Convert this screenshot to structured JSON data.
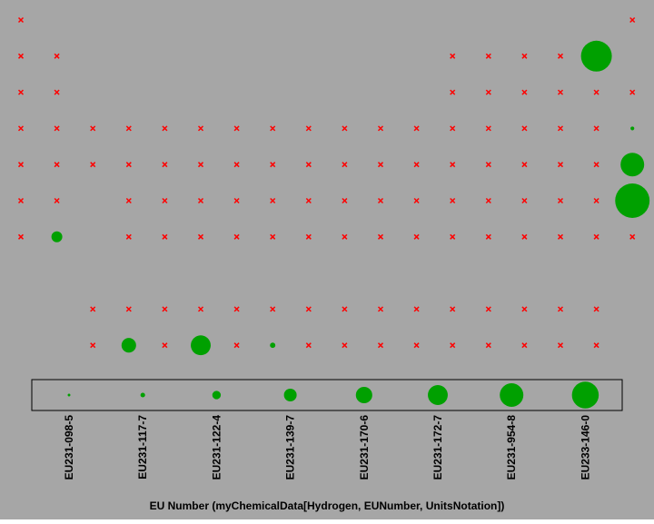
{
  "chart_data": {
    "type": "bubble",
    "background": "#a6a6a6",
    "bubble_color": "#00a000",
    "cross_color": "#ff0000",
    "matrix": [
      [
        0,
        null,
        null,
        null,
        null,
        null,
        null,
        null,
        null,
        null,
        null,
        null,
        null,
        null,
        null,
        null,
        null,
        0
      ],
      [
        0,
        0,
        null,
        null,
        null,
        null,
        null,
        null,
        null,
        null,
        null,
        null,
        0,
        0,
        0,
        0,
        26.5,
        null
      ],
      [
        0,
        0,
        null,
        null,
        null,
        null,
        null,
        null,
        null,
        null,
        null,
        null,
        0,
        0,
        0,
        0,
        0,
        0
      ],
      [
        0,
        0,
        0,
        0,
        0,
        0,
        0,
        0,
        0,
        0,
        0,
        0,
        0,
        0,
        0,
        0,
        0,
        0.4
      ],
      [
        0,
        0,
        0,
        0,
        0,
        0,
        0,
        0,
        0,
        0,
        0,
        0,
        0,
        0,
        0,
        0,
        0,
        15.5
      ],
      [
        0,
        0,
        null,
        0,
        0,
        0,
        0,
        0,
        0,
        0,
        0,
        0,
        0,
        0,
        0,
        0,
        0,
        33
      ],
      [
        0,
        3.3,
        null,
        0,
        0,
        0,
        0,
        0,
        0,
        0,
        0,
        0,
        0,
        0,
        0,
        0,
        0,
        0
      ],
      [
        null,
        null,
        null,
        null,
        null,
        null,
        null,
        null,
        null,
        null,
        null,
        null,
        null,
        null,
        null,
        null,
        null,
        null
      ],
      [
        null,
        null,
        0,
        0,
        0,
        0,
        0,
        0,
        0,
        0,
        0,
        0,
        0,
        0,
        0,
        0,
        0,
        null
      ],
      [
        null,
        null,
        0,
        5.9,
        0,
        11,
        0,
        0.8,
        0,
        0,
        0,
        0,
        0,
        0,
        0,
        0,
        0,
        null
      ]
    ],
    "categories": [
      "EU231-098-5",
      "EU231-117-7",
      "EU231-122-4",
      "EU231-139-7",
      "EU231-170-6",
      "EU231-172-7",
      "EU231-954-8",
      "EU233-146-0"
    ],
    "sizes": [
      0.2,
      0.6,
      2,
      4.5,
      7.5,
      11,
      15.5,
      20
    ],
    "xlabel": "EU Number (myChemicalData[Hydrogen, EUNumber, UnitsNotation])"
  }
}
